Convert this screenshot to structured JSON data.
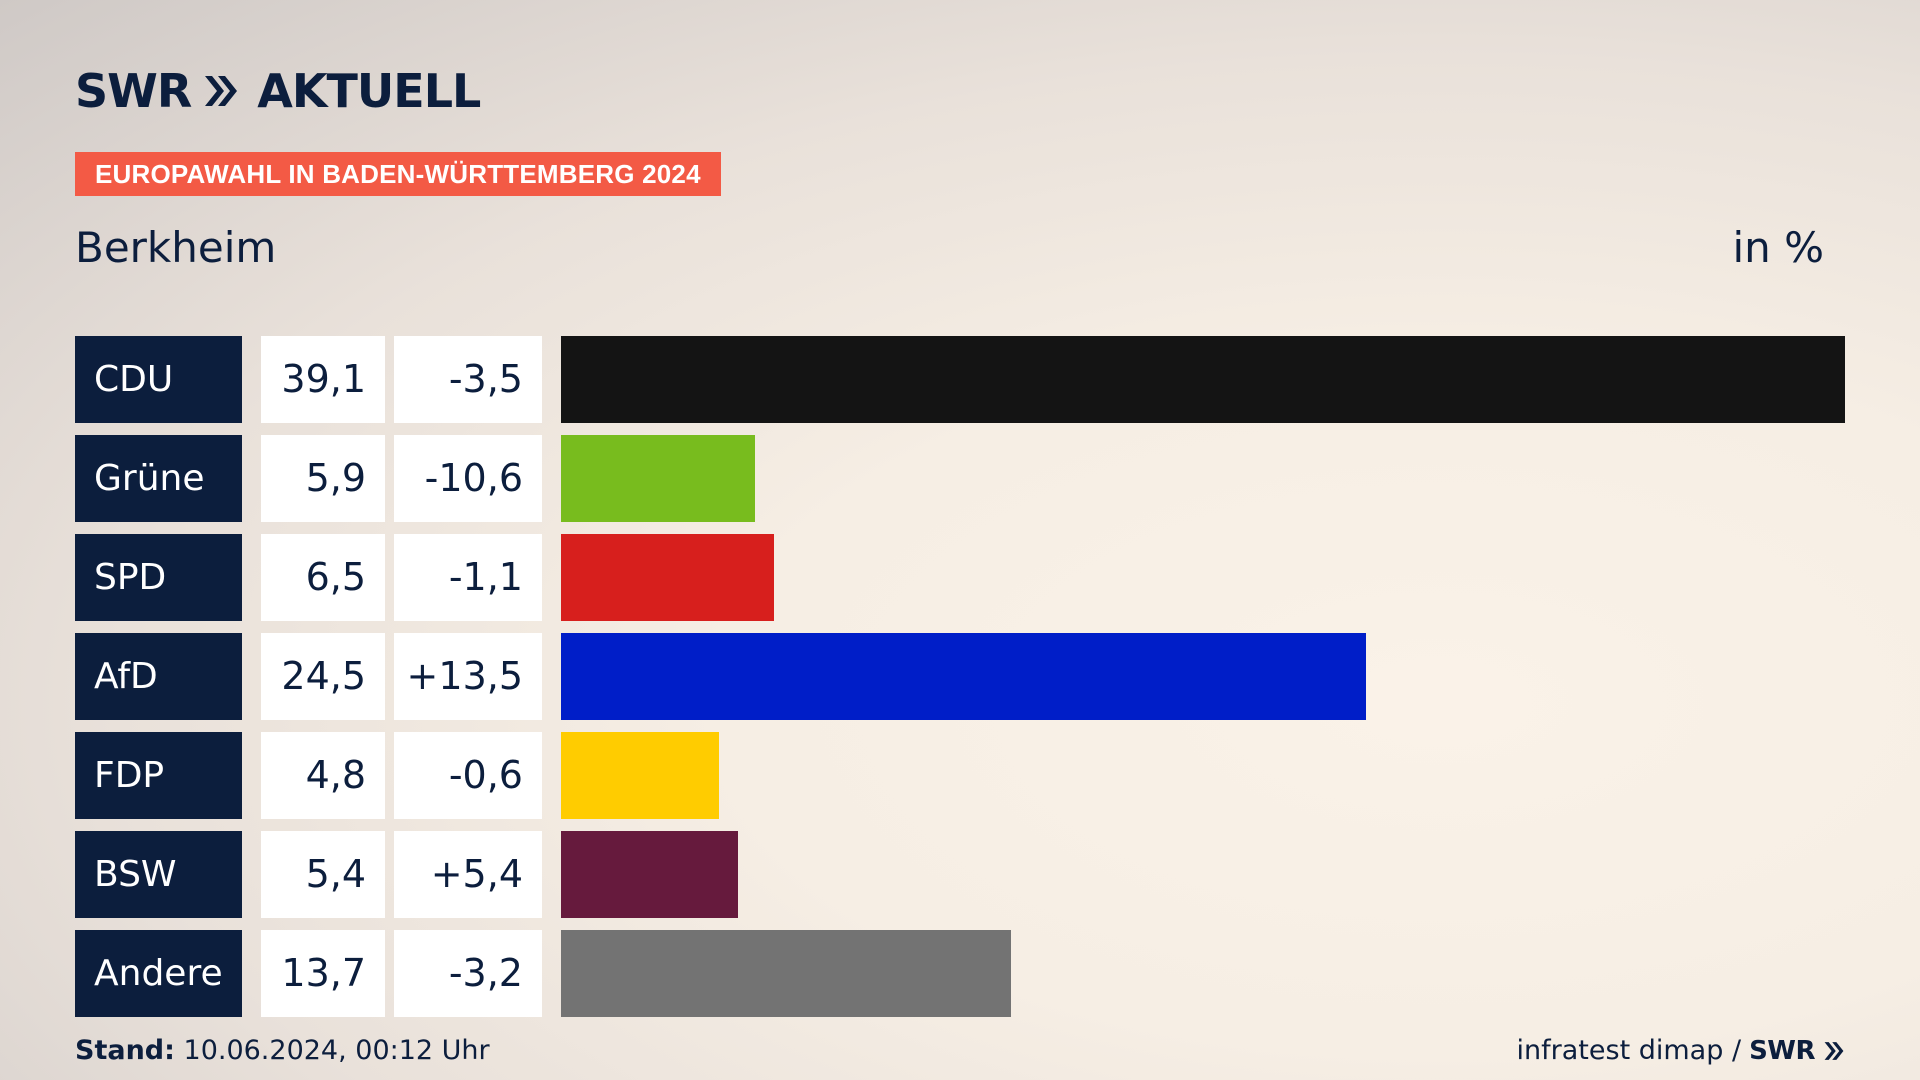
{
  "header": {
    "logo_text": "SWR",
    "logo_suffix": "AKTUELL",
    "banner": "EUROPAWAHL IN BADEN-WÜRTTEMBERG 2024",
    "region": "Berkheim",
    "unit": "in %"
  },
  "footer": {
    "stand_label": "Stand:",
    "stand_value": "10.06.2024, 00:12 Uhr",
    "source": "infratest dimap /",
    "source_logo": "SWR"
  },
  "colors": {
    "navy": "#0c1e3d",
    "banner": "#f35a45"
  },
  "chart_data": {
    "type": "bar",
    "categories": [
      "CDU",
      "Grüne",
      "SPD",
      "AfD",
      "FDP",
      "BSW",
      "Andere"
    ],
    "values": [
      39.1,
      5.9,
      6.5,
      24.5,
      4.8,
      5.4,
      13.7
    ],
    "values_label": [
      "39,1",
      "5,9",
      "6,5",
      "24,5",
      "4,8",
      "5,4",
      "13,7"
    ],
    "diffs": [
      "-3,5",
      "-10,6",
      "-1,1",
      "+13,5",
      "-0,6",
      "+5,4",
      "-3,2"
    ],
    "colors": [
      "#141414",
      "#78bc1e",
      "#d71f1d",
      "#001ec8",
      "#ffcc00",
      "#661a3d",
      "#737373"
    ],
    "title": "Berkheim",
    "ylabel": "in %",
    "grid": false,
    "legend": "none"
  }
}
